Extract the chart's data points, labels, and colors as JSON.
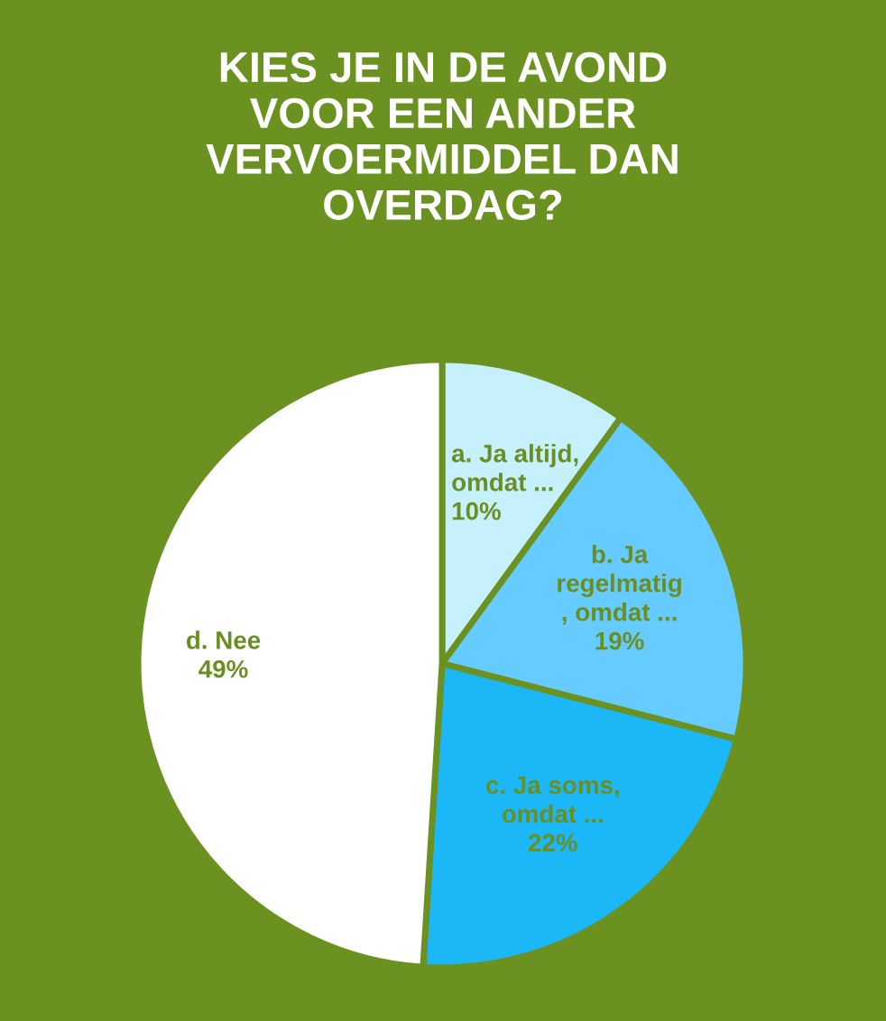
{
  "chart_data": {
    "type": "pie",
    "title": "KIES JE IN DE AVOND\nVOOR EEN ANDER\nVERVOERMIDDEL DAN\nOVERDAG?",
    "categories": [
      "a. Ja altijd,\nomdat ...",
      "b. Ja\nregelmatig\n, omdat ...",
      "c. Ja soms,\nomdat ...",
      "d. Nee"
    ],
    "values": [
      10,
      19,
      22,
      49
    ],
    "colors": [
      "#c5f0fc",
      "#66ccff",
      "#1bb7f7",
      "#ffffff"
    ],
    "value_labels": [
      "10%",
      "19%",
      "22%",
      "49%"
    ],
    "legend": false
  }
}
